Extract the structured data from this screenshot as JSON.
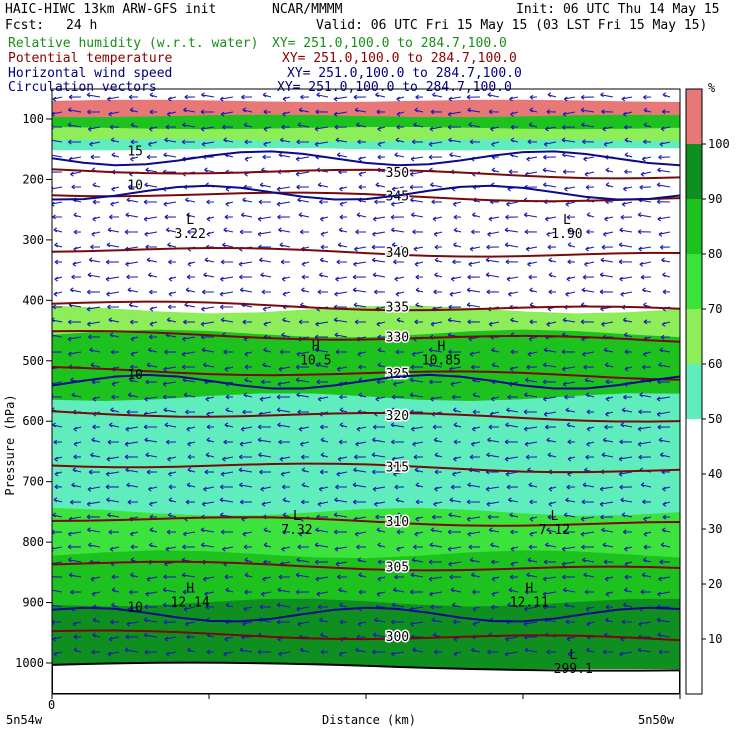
{
  "header": {
    "model": "HAIC-HIWC 13km ARW-GFS init",
    "org": "NCAR/MMMM",
    "init": "Init: 06 UTC Thu 14 May 15",
    "fcst_label": "Fcst:",
    "fcst_value": "24 h",
    "valid": "Valid: 06 UTC Fri 15 May 15 (03 LST Fri 15 May 15)",
    "fields": [
      {
        "name": "Relative humidity (w.r.t. water)",
        "xy": "XY= 251.0,100.0 to 284.7,100.0",
        "color": "#1a8c1a"
      },
      {
        "name": "Potential temperature",
        "xy": "XY= 251.0,100.0 to 284.7,100.0",
        "color": "#8b0000"
      },
      {
        "name": "Horizontal wind speed",
        "xy": "XY= 251.0,100.0 to 284.7,100.0",
        "color": "#00007f"
      },
      {
        "name": "Circulation vectors",
        "xy": "XY= 251.0,100.0 to 284.7,100.0",
        "color": "#00007f"
      }
    ]
  },
  "chart_data": {
    "type": "heatmap",
    "xlabel": "Distance (km)",
    "ylabel": "Pressure (hPa)",
    "x_zero_label": "0",
    "x_left_label": "5n54w",
    "x_right_label": "5n50w",
    "yticks": [
      100,
      200,
      300,
      400,
      500,
      600,
      700,
      800,
      900,
      1000
    ],
    "ylim": [
      1050,
      70
    ],
    "colorbar": {
      "unit": "%",
      "ticks": [
        10,
        20,
        30,
        40,
        50,
        60,
        70,
        80,
        90,
        100
      ],
      "colors": [
        "#ffffff",
        "#ffffff",
        "#ffffff",
        "#ffffff",
        "#ffffff",
        "#5fedbd",
        "#8dee5a",
        "#3de33d",
        "#1ec21e",
        "#0f8f1f",
        "#e87878"
      ]
    },
    "rh_layers": [
      {
        "p_top": 70,
        "p_bot": 95,
        "rh": 102
      },
      {
        "p_top": 95,
        "p_bot": 115,
        "rh": 85
      },
      {
        "p_top": 115,
        "p_bot": 135,
        "rh": 65
      },
      {
        "p_top": 135,
        "p_bot": 150,
        "rh": 55
      },
      {
        "p_top": 150,
        "p_bot": 415,
        "rh": 20
      },
      {
        "p_top": 415,
        "p_bot": 455,
        "rh": 65
      },
      {
        "p_top": 455,
        "p_bot": 560,
        "rh": 80
      },
      {
        "p_top": 560,
        "p_bot": 750,
        "rh": 55
      },
      {
        "p_top": 750,
        "p_bot": 820,
        "rh": 75
      },
      {
        "p_top": 820,
        "p_bot": 900,
        "rh": 85
      },
      {
        "p_top": 900,
        "p_bot": 1000,
        "rh": 95
      }
    ],
    "theta_isolines": [
      {
        "label": "350",
        "p": 183
      },
      {
        "label": "345",
        "p": 222
      },
      {
        "label": "340",
        "p": 315
      },
      {
        "label": "335",
        "p": 405
      },
      {
        "label": "330",
        "p": 455
      },
      {
        "label": "325",
        "p": 515
      },
      {
        "label": "320",
        "p": 585
      },
      {
        "label": "315",
        "p": 670
      },
      {
        "label": "310",
        "p": 760
      },
      {
        "label": "305",
        "p": 835
      },
      {
        "label": "300",
        "p": 950
      }
    ],
    "wind_isotachs": [
      {
        "label": "15",
        "p": 165
      },
      {
        "label": "10",
        "p": 222
      },
      {
        "label": "10",
        "p": 535
      },
      {
        "label": "10",
        "p": 920
      }
    ],
    "extrema": [
      {
        "type": "L",
        "value": "3.22",
        "x": 0.22,
        "p": 280
      },
      {
        "type": "L",
        "value": "1.90",
        "x": 0.82,
        "p": 280
      },
      {
        "type": "H",
        "value": "10.5",
        "x": 0.42,
        "p": 490
      },
      {
        "type": "H",
        "value": "10.85",
        "x": 0.62,
        "p": 490
      },
      {
        "type": "L",
        "value": "7.32",
        "x": 0.39,
        "p": 770
      },
      {
        "type": "L",
        "value": "7.12",
        "x": 0.8,
        "p": 770
      },
      {
        "type": "H",
        "value": "12.14",
        "x": 0.22,
        "p": 890
      },
      {
        "type": "H",
        "value": "12.11",
        "x": 0.76,
        "p": 890
      },
      {
        "type": "L",
        "value": "299.1",
        "x": 0.83,
        "p": 1000
      }
    ]
  }
}
